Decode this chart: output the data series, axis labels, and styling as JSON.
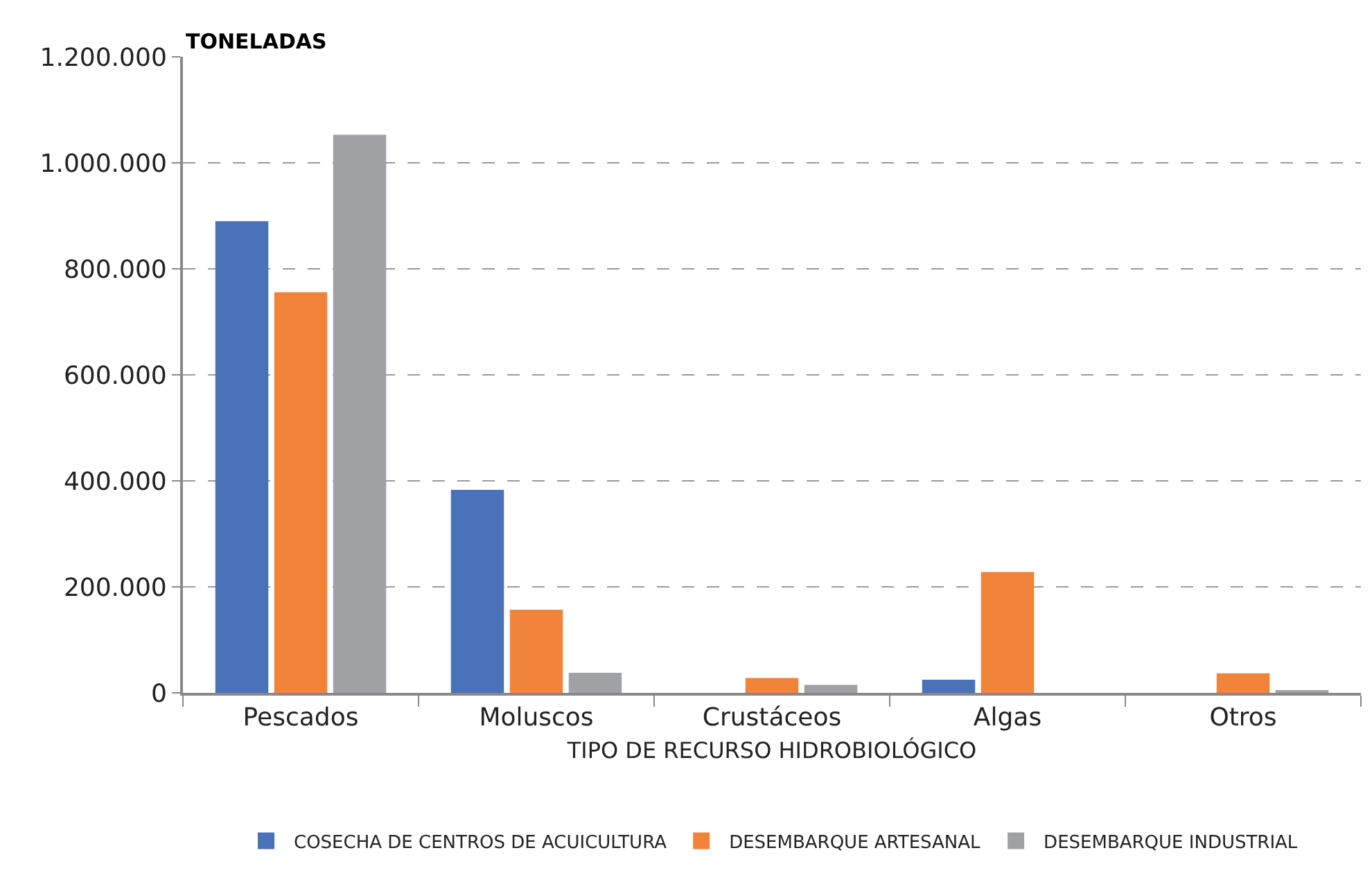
{
  "chart_data": {
    "type": "bar",
    "ylabel": "TONELADAS",
    "xlabel": "TIPO DE RECURSO HIDROBIOLÓGICO",
    "categories": [
      "Pescados",
      "Moluscos",
      "Crustáceos",
      "Algas",
      "Otros"
    ],
    "series": [
      {
        "name": "COSECHA DE CENTROS DE ACUICULTURA",
        "color": "#4a72b8",
        "values": [
          890000,
          383000,
          0,
          25000,
          0
        ]
      },
      {
        "name": "DESEMBARQUE ARTESANAL",
        "color": "#f2833b",
        "values": [
          756000,
          157000,
          28000,
          228000,
          37000
        ]
      },
      {
        "name": "DESEMBARQUE INDUSTRIAL",
        "color": "#a0a1a5",
        "values": [
          1053000,
          38000,
          15000,
          0,
          5000
        ]
      }
    ],
    "ylim": [
      0,
      1200000
    ],
    "yticks": [
      {
        "value": 0,
        "label": "0"
      },
      {
        "value": 200000,
        "label": "200.000"
      },
      {
        "value": 400000,
        "label": "400.000"
      },
      {
        "value": 600000,
        "label": "600.000"
      },
      {
        "value": 800000,
        "label": "800.000"
      },
      {
        "value": 1000000,
        "label": "1.000.000"
      },
      {
        "value": 1200000,
        "label": "1.200.000"
      }
    ],
    "grid": "y",
    "legend": "bottom"
  }
}
